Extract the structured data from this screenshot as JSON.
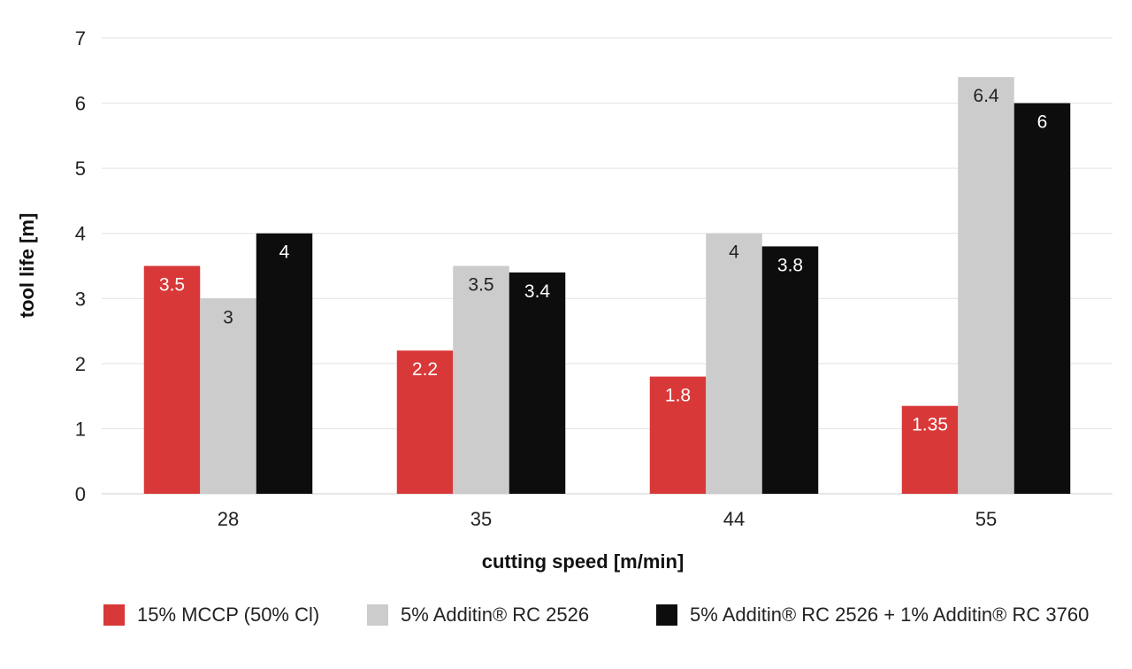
{
  "chart_data": {
    "type": "bar",
    "title": "",
    "xlabel": "cutting speed [m/min]",
    "ylabel": "tool life [m]",
    "categories": [
      "28",
      "35",
      "44",
      "55"
    ],
    "ylim": [
      0,
      7
    ],
    "yticks": [
      "0",
      "1",
      "2",
      "3",
      "4",
      "5",
      "6",
      "7"
    ],
    "grid": true,
    "legend_position": "bottom",
    "series": [
      {
        "name": "15% MCCP (50% Cl)",
        "color": "#d93838",
        "label_color": "#ffffff",
        "values": [
          3.5,
          2.2,
          1.8,
          1.35
        ],
        "labels": [
          "3.5",
          "2.2",
          "1.8",
          "1.35"
        ]
      },
      {
        "name": "5% Additin® RC 2526",
        "color": "#cccccc",
        "label_color": "#222222",
        "values": [
          3,
          3.5,
          4,
          6.4
        ],
        "labels": [
          "3",
          "3.5",
          "4",
          "6.4"
        ]
      },
      {
        "name": "5% Additin® RC 2526 + 1% Additin® RC 3760",
        "color": "#0d0d0d",
        "label_color": "#ffffff",
        "values": [
          4,
          3.4,
          3.8,
          6
        ],
        "labels": [
          "4",
          "3.4",
          "3.8",
          "6"
        ]
      }
    ]
  }
}
